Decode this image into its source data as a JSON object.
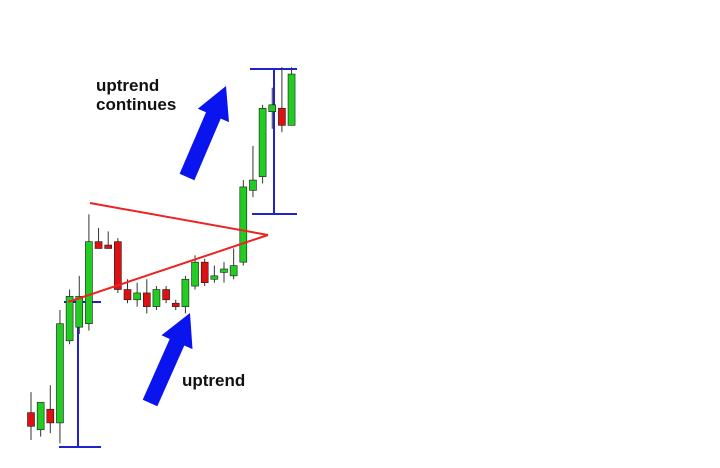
{
  "chart_data": {
    "type": "candlestick",
    "title": "",
    "xlabel": "",
    "ylabel": "",
    "axes_visible": false,
    "grid": false,
    "pattern": "symmetrical-triangle",
    "colors": {
      "bullish": "#22cc22",
      "bearish": "#dd1111",
      "wick": "#333333",
      "pattern_lines": "#ee2222",
      "measure_lines": "#2222cc",
      "arrows": "#0a14ee"
    },
    "candles": [
      {
        "open": 8,
        "high": 14,
        "low": 0,
        "close": 4
      },
      {
        "open": 3,
        "high": 11,
        "low": 1,
        "close": 11
      },
      {
        "open": 9,
        "high": 16,
        "low": 2,
        "close": 5
      },
      {
        "open": 5,
        "high": 38,
        "low": -1,
        "close": 34
      },
      {
        "open": 29,
        "high": 44,
        "low": 28,
        "close": 42
      },
      {
        "open": 33,
        "high": 48,
        "low": 31,
        "close": 42
      },
      {
        "open": 34,
        "high": 66,
        "low": 32,
        "close": 58
      },
      {
        "open": 58,
        "high": 62,
        "low": 57,
        "close": 56
      },
      {
        "open": 57,
        "high": 61,
        "low": 56,
        "close": 56
      },
      {
        "open": 58,
        "high": 59,
        "low": 43,
        "close": 44
      },
      {
        "open": 44,
        "high": 47,
        "low": 40,
        "close": 41
      },
      {
        "open": 41,
        "high": 46,
        "low": 39,
        "close": 43
      },
      {
        "open": 43,
        "high": 47,
        "low": 37,
        "close": 39
      },
      {
        "open": 39,
        "high": 45,
        "low": 38,
        "close": 44
      },
      {
        "open": 44,
        "high": 45,
        "low": 40,
        "close": 41
      },
      {
        "open": 40,
        "high": 41,
        "low": 38,
        "close": 39
      },
      {
        "open": 39,
        "high": 48,
        "low": 37,
        "close": 47
      },
      {
        "open": 45,
        "high": 54,
        "low": 44,
        "close": 52
      },
      {
        "open": 52,
        "high": 53,
        "low": 45,
        "close": 46
      },
      {
        "open": 47,
        "high": 51,
        "low": 46,
        "close": 48
      },
      {
        "open": 49,
        "high": 52,
        "low": 46,
        "close": 50
      },
      {
        "open": 48,
        "high": 56,
        "low": 47,
        "close": 51
      },
      {
        "open": 52,
        "high": 76,
        "low": 51,
        "close": 74
      },
      {
        "open": 73,
        "high": 86,
        "low": 71,
        "close": 76
      },
      {
        "open": 77,
        "high": 98,
        "low": 75,
        "close": 97
      },
      {
        "open": 96,
        "high": 103,
        "low": 91,
        "close": 98
      },
      {
        "open": 97,
        "high": 109,
        "low": 90,
        "close": 92
      },
      {
        "open": 92,
        "high": 109,
        "low": 92,
        "close": 107
      }
    ],
    "annotations": [
      {
        "id": "uptrend-continues",
        "lines": [
          "uptrend",
          "continues"
        ]
      },
      {
        "id": "uptrend",
        "lines": [
          "uptrend"
        ]
      }
    ]
  }
}
